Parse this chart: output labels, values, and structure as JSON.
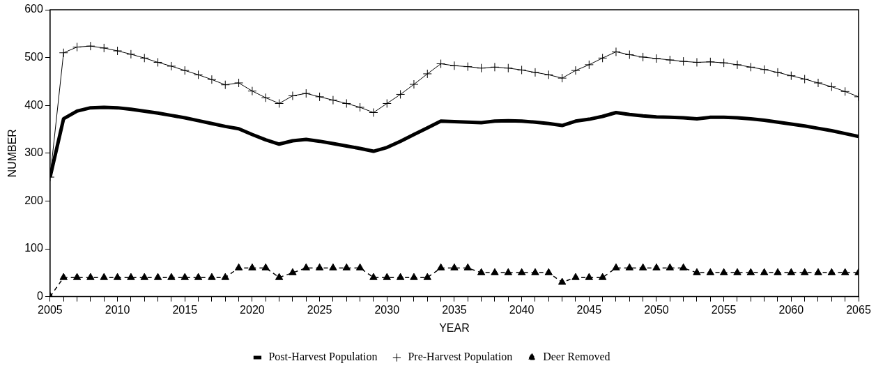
{
  "chart_data": {
    "type": "line",
    "xlabel": "YEAR",
    "ylabel": "NUMBER",
    "x": [
      2005,
      2006,
      2007,
      2008,
      2009,
      2010,
      2011,
      2012,
      2013,
      2014,
      2015,
      2016,
      2017,
      2018,
      2019,
      2020,
      2021,
      2022,
      2023,
      2024,
      2025,
      2026,
      2027,
      2028,
      2029,
      2030,
      2031,
      2032,
      2033,
      2034,
      2035,
      2036,
      2037,
      2038,
      2039,
      2040,
      2041,
      2042,
      2043,
      2044,
      2045,
      2046,
      2047,
      2048,
      2049,
      2050,
      2051,
      2052,
      2053,
      2054,
      2055,
      2056,
      2057,
      2058,
      2059,
      2060,
      2061,
      2062,
      2063,
      2064,
      2065
    ],
    "series": [
      {
        "name": "Post-Harvest Population",
        "color": "#000000",
        "marker": "none",
        "line_style": "solid",
        "values": [
          250,
          372,
          388,
          395,
          396,
          395,
          392,
          388,
          384,
          379,
          374,
          368,
          362,
          356,
          351,
          339,
          328,
          319,
          326,
          329,
          325,
          320,
          315,
          310,
          304,
          312,
          325,
          339,
          353,
          367,
          366,
          365,
          364,
          367,
          368,
          367,
          365,
          362,
          358,
          367,
          371,
          377,
          385,
          381,
          378,
          376,
          375,
          374,
          372,
          375,
          375,
          374,
          372,
          369,
          365,
          361,
          357,
          352,
          347,
          341,
          335
        ]
      },
      {
        "name": "Pre-Harvest Population",
        "color": "#000000",
        "marker": "cross",
        "line_style": "solid",
        "values": [
          250,
          510,
          522,
          524,
          520,
          514,
          507,
          499,
          490,
          482,
          473,
          464,
          454,
          443,
          447,
          430,
          416,
          404,
          420,
          425,
          418,
          411,
          404,
          396,
          385,
          404,
          423,
          444,
          466,
          487,
          483,
          481,
          478,
          480,
          478,
          474,
          469,
          464,
          457,
          473,
          485,
          499,
          512,
          506,
          501,
          498,
          495,
          492,
          490,
          491,
          489,
          485,
          480,
          475,
          469,
          462,
          455,
          447,
          439,
          429,
          418
        ]
      },
      {
        "name": "Deer Removed",
        "color": "#000000",
        "marker": "triangle",
        "line_style": "dashed",
        "values": [
          0,
          40,
          40,
          40,
          40,
          40,
          40,
          40,
          40,
          40,
          40,
          40,
          40,
          40,
          60,
          60,
          60,
          40,
          50,
          60,
          60,
          60,
          60,
          60,
          40,
          40,
          40,
          40,
          40,
          60,
          60,
          60,
          50,
          50,
          50,
          50,
          50,
          50,
          30,
          40,
          40,
          40,
          60,
          60,
          60,
          60,
          60,
          60,
          50,
          50,
          50,
          50,
          50,
          50,
          50,
          50,
          50,
          50,
          50,
          50,
          50
        ]
      }
    ],
    "xlim": [
      2005,
      2065
    ],
    "xticks": [
      2005,
      {
        "value": 2006,
        "label": null
      },
      {
        "value": 2007,
        "label": null
      },
      {
        "value": 2008,
        "label": null
      },
      {
        "value": 2009,
        "label": null
      },
      2010,
      {
        "value": 2011,
        "label": null
      },
      {
        "value": 2012,
        "label": null
      },
      {
        "value": 2013,
        "label": null
      },
      {
        "value": 2014,
        "label": null
      },
      2015,
      {
        "value": 2016,
        "label": null
      },
      {
        "value": 2017,
        "label": null
      },
      {
        "value": 2018,
        "label": null
      },
      {
        "value": 2019,
        "label": null
      },
      2020,
      {
        "value": 2021,
        "label": null
      },
      {
        "value": 2022,
        "label": null
      },
      {
        "value": 2023,
        "label": null
      },
      {
        "value": 2024,
        "label": null
      },
      2025,
      {
        "value": 2026,
        "label": null
      },
      {
        "value": 2027,
        "label": null
      },
      {
        "value": 2028,
        "label": null
      },
      {
        "value": 2029,
        "label": null
      },
      2030,
      {
        "value": 2031,
        "label": null
      },
      {
        "value": 2032,
        "label": null
      },
      {
        "value": 2033,
        "label": null
      },
      {
        "value": 2034,
        "label": null
      },
      2035,
      {
        "value": 2036,
        "label": null
      },
      {
        "value": 2037,
        "label": null
      },
      {
        "value": 2038,
        "label": null
      },
      {
        "value": 2039,
        "label": null
      },
      2040,
      {
        "value": 2041,
        "label": null
      },
      {
        "value": 2042,
        "label": null
      },
      {
        "value": 2043,
        "label": null
      },
      {
        "value": 2044,
        "label": null
      },
      2045,
      {
        "value": 2046,
        "label": null
      },
      {
        "value": 2047,
        "label": null
      },
      {
        "value": 2048,
        "label": null
      },
      {
        "value": 2049,
        "label": null
      },
      2050,
      {
        "value": 2051,
        "label": null
      },
      {
        "value": 2052,
        "label": null
      },
      {
        "value": 2053,
        "label": null
      },
      {
        "value": 2054,
        "label": null
      },
      2055,
      {
        "value": 2056,
        "label": null
      },
      {
        "value": 2057,
        "label": null
      },
      {
        "value": 2058,
        "label": null
      },
      {
        "value": 2059,
        "label": null
      },
      2060,
      {
        "value": 2061,
        "label": null
      },
      {
        "value": 2062,
        "label": null
      },
      {
        "value": 2063,
        "label": null
      },
      {
        "value": 2064,
        "label": null
      },
      2065
    ],
    "ylim": [
      0,
      600
    ],
    "yticks": [
      0,
      100,
      200,
      300,
      400,
      500,
      600
    ],
    "grid": false,
    "legend": "bottom"
  }
}
